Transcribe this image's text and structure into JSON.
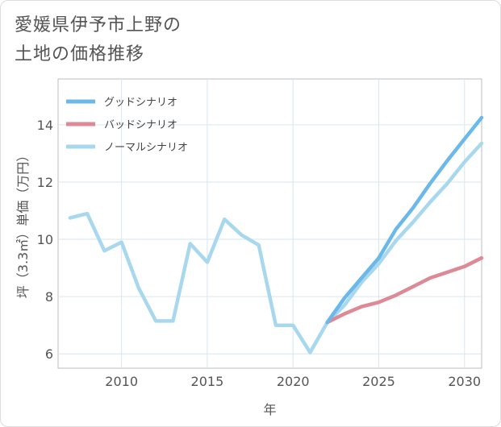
{
  "header": {
    "title_line1": "愛媛県伊予市上野の",
    "title_line2": "土地の価格推移"
  },
  "colors": {
    "good": "#6bb8ea",
    "bad": "#dd8a96",
    "normal": "#a8d8ee",
    "grid": "#d7e6ef",
    "plot_border": "#bcbcbc"
  },
  "chart_data": {
    "type": "line",
    "title": "愛媛県伊予市上野の土地の価格推移",
    "xlabel": "年",
    "ylabel": "坪（3.3㎡）単価（万円）",
    "xlim": [
      2006.3,
      2031
    ],
    "ylim": [
      5.5,
      15.6
    ],
    "x_ticks": [
      2010,
      2015,
      2020,
      2025,
      2030
    ],
    "y_ticks": [
      6,
      8,
      10,
      12,
      14
    ],
    "legend_position": "top-left",
    "series": [
      {
        "name": "グッドシナリオ",
        "color_key": "good",
        "x": [
          2022,
          2023,
          2024,
          2025,
          2026,
          2027,
          2028,
          2029,
          2030,
          2031
        ],
        "values": [
          7.1,
          7.95,
          8.65,
          9.35,
          10.35,
          11.1,
          11.95,
          12.75,
          13.5,
          14.25
        ]
      },
      {
        "name": "バッドシナリオ",
        "color_key": "bad",
        "x": [
          2022,
          2023,
          2024,
          2025,
          2026,
          2027,
          2028,
          2029,
          2030,
          2031
        ],
        "values": [
          7.1,
          7.4,
          7.65,
          7.8,
          8.05,
          8.35,
          8.65,
          8.85,
          9.05,
          9.35
        ]
      },
      {
        "name": "ノーマルシナリオ",
        "color_key": "normal",
        "x": [
          2007,
          2008,
          2009,
          2010,
          2011,
          2012,
          2013,
          2014,
          2015,
          2016,
          2017,
          2018,
          2019,
          2020,
          2021,
          2022,
          2023,
          2024,
          2025,
          2026,
          2027,
          2028,
          2029,
          2030,
          2031
        ],
        "values": [
          10.75,
          10.9,
          9.6,
          9.9,
          8.3,
          7.15,
          7.15,
          9.85,
          9.2,
          10.7,
          10.15,
          9.8,
          7.0,
          7.0,
          6.05,
          7.1,
          7.7,
          8.5,
          9.15,
          9.95,
          10.6,
          11.3,
          11.95,
          12.7,
          13.35
        ]
      }
    ]
  }
}
